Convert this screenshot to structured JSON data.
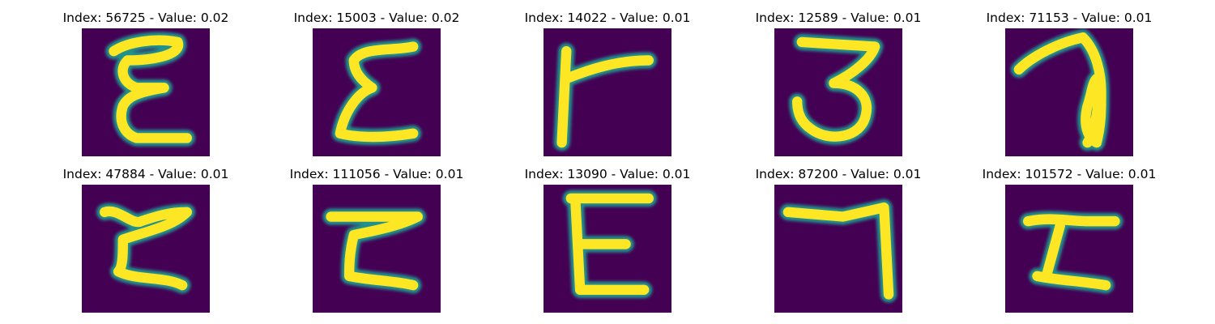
{
  "colors": {
    "background": "#440154",
    "mid": "#21918c",
    "foreground": "#fde725"
  },
  "cells": [
    {
      "title": "Index: 56725 - Value: 0.02",
      "glyph": "E-like digit"
    },
    {
      "title": "Index: 15003 - Value: 0.02",
      "glyph": "sigma-like digit"
    },
    {
      "title": "Index: 14022 - Value: 0.01",
      "glyph": "T-like digit"
    },
    {
      "title": "Index: 12589 - Value: 0.01",
      "glyph": "3-like digit"
    },
    {
      "title": "Index: 71153 - Value: 0.01",
      "glyph": "7-like digit"
    },
    {
      "title": "Index: 47884 - Value: 0.01",
      "glyph": "epsilon-like digit"
    },
    {
      "title": "Index: 111056 - Value: 0.01",
      "glyph": "Z-like digit"
    },
    {
      "title": "Index: 13090 - Value: 0.01",
      "glyph": "E-like digit"
    },
    {
      "title": "Index: 87200 - Value: 0.01",
      "glyph": "7-like digit"
    },
    {
      "title": "Index: 101572 - Value: 0.01",
      "glyph": "Z-like digit"
    }
  ]
}
